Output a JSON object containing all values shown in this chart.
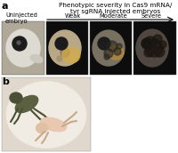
{
  "panel_a_title_line1": "Phenotypic severity in Cas9 mRNA/",
  "panel_a_title_line2": "tyr sgRNA injected embryos",
  "panel_a_label": "a",
  "panel_b_label": "b",
  "label_uninjected_line1": "Uninjected",
  "label_uninjected_line2": "embryo",
  "label_weak": "Weak",
  "label_moderate": "Moderate",
  "label_severe": "Severe",
  "background_color": "#ffffff",
  "image_bg_color_uninjected": "#d0cec8",
  "image_bg_color_weak": "#1a1a1a",
  "image_bg_color_moderate": "#1a1a1a",
  "image_bg_color_severe": "#1a1a1a",
  "panel_b_bg": "#e8ddd0",
  "title_fontsize": 5.2,
  "label_fontsize": 4.8,
  "panel_label_fontsize": 8,
  "arrow_color": "#000000",
  "text_color": "#000000",
  "figure_width": 2.0,
  "figure_height": 1.72,
  "dpi": 100,
  "embryo_colors": {
    "uninjected_body": "#e8e4dc",
    "uninjected_eye": "#1a1a1a",
    "uninjected_pupil": "#0d0d0d",
    "weak_body": "#c8b896",
    "weak_eye": "#1a1a1a",
    "moderate_body": "#8c7a60",
    "moderate_spots": "#2a2a2a",
    "severe_body": "#b0a090",
    "severe_pigment": "#3a3028"
  }
}
